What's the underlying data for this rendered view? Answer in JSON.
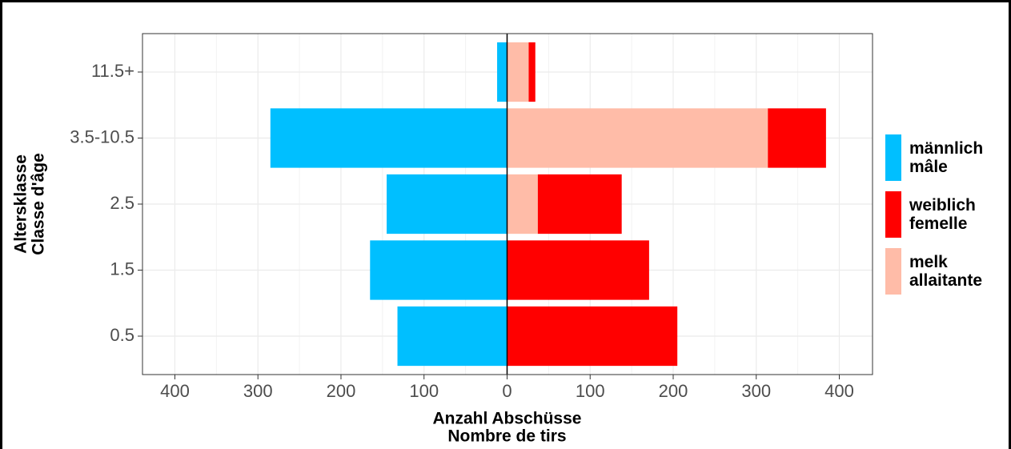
{
  "chart_data": {
    "type": "bar",
    "orientation": "horizontal",
    "stacked": true,
    "categories": [
      "0.5",
      "1.5",
      "2.5",
      "3.5-10.5",
      "11.5+"
    ],
    "series": [
      {
        "name": "männlich mâle",
        "color": "#00bfff",
        "values": [
          -132,
          -165,
          -145,
          -285,
          -12
        ]
      },
      {
        "name": "melk allaitante",
        "color": "#ffbca8",
        "values": [
          0,
          0,
          37,
          314,
          26
        ]
      },
      {
        "name": "weiblich femelle",
        "color": "#ff0000",
        "values": [
          205,
          171,
          101,
          70,
          8
        ]
      }
    ],
    "legend_order": [
      0,
      2,
      1
    ],
    "x_label": [
      "Anzahl Abschüsse",
      "Nombre de tirs"
    ],
    "y_label": [
      "Altersklasse",
      "Classe d'âge"
    ],
    "xlim": [
      -439,
      440
    ],
    "xticks": [
      {
        "value": -400,
        "label": "400"
      },
      {
        "value": -300,
        "label": "300"
      },
      {
        "value": -200,
        "label": "200"
      },
      {
        "value": -100,
        "label": "100"
      },
      0,
      100,
      200,
      300,
      400
    ],
    "grid": true,
    "legend": "right"
  }
}
